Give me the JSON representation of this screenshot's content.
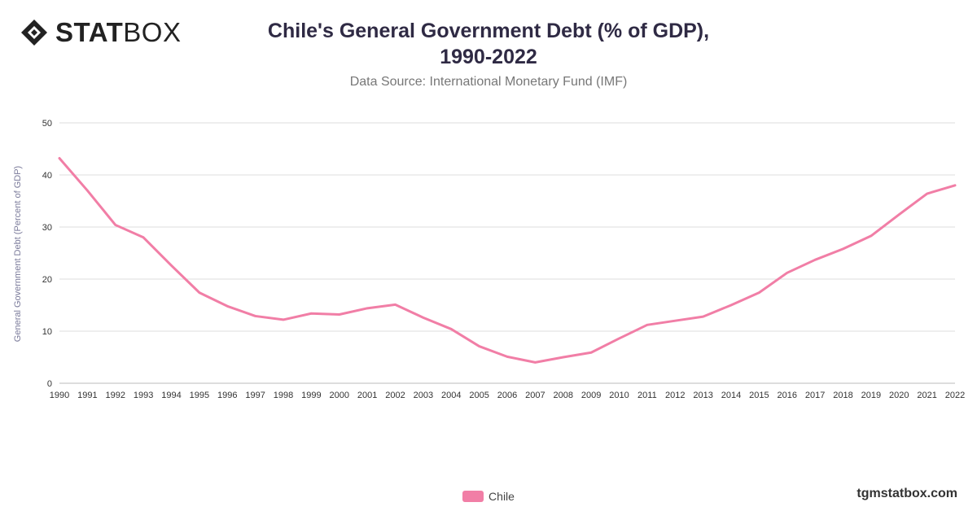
{
  "logo": {
    "bold_part": "STAT",
    "light_part": "BOX",
    "icon": "diamond-logo-icon"
  },
  "header": {
    "footer_site": "tgmstatbox.com"
  },
  "colors": {
    "series": "#f17ea6",
    "grid": "#dddddd",
    "axis_text": "#333333",
    "ylabel_text": "#7a7a9a"
  },
  "chart_data": {
    "type": "line",
    "title_line1": "Chile's General Government Debt (% of GDP),",
    "title_line2": "1990-2022",
    "subtitle": "Data Source: International Monetary Fund (IMF)",
    "xlabel": "",
    "ylabel": "General Government Debt (Percent of GDP)",
    "ylim": [
      0,
      50
    ],
    "yticks": [
      0,
      10,
      20,
      30,
      40,
      50
    ],
    "grid": true,
    "legend_position": "bottom-center",
    "x": [
      "1990",
      "1991",
      "1992",
      "1993",
      "1994",
      "1995",
      "1996",
      "1997",
      "1998",
      "1999",
      "2000",
      "2001",
      "2002",
      "2003",
      "2004",
      "2005",
      "2006",
      "2007",
      "2008",
      "2009",
      "2010",
      "2011",
      "2012",
      "2013",
      "2014",
      "2015",
      "2016",
      "2017",
      "2018",
      "2019",
      "2020",
      "2021",
      "2022"
    ],
    "series": [
      {
        "name": "Chile",
        "values": [
          43.2,
          37.0,
          30.4,
          28.0,
          22.6,
          17.4,
          14.8,
          12.9,
          12.2,
          13.4,
          13.2,
          14.4,
          15.1,
          12.6,
          10.4,
          7.1,
          5.1,
          4.0,
          5.0,
          5.9,
          8.6,
          11.2,
          12.0,
          12.8,
          15.0,
          17.4,
          21.2,
          23.7,
          25.8,
          28.3,
          32.4,
          36.4,
          38.0
        ]
      }
    ]
  }
}
